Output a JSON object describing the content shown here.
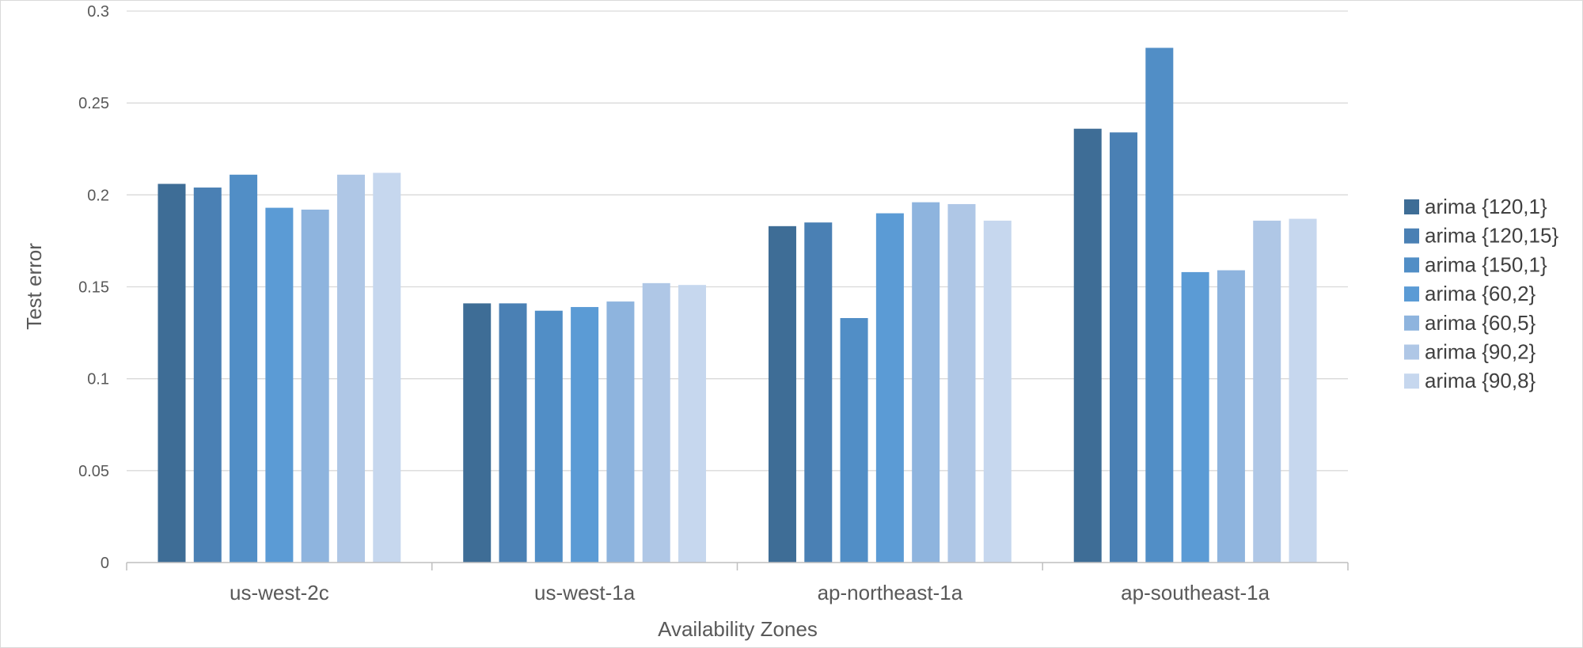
{
  "chart_data": {
    "type": "bar",
    "title": "",
    "xlabel": "Availability Zones",
    "ylabel": "Test error",
    "ylim": [
      0,
      0.3
    ],
    "yticks": [
      {
        "value": 0,
        "label": "0"
      },
      {
        "value": 0.05,
        "label": "0.05"
      },
      {
        "value": 0.1,
        "label": "0.1"
      },
      {
        "value": 0.15,
        "label": "0.15"
      },
      {
        "value": 0.2,
        "label": "0.2"
      },
      {
        "value": 0.25,
        "label": "0.25"
      },
      {
        "value": 0.3,
        "label": "0.3"
      }
    ],
    "grid": true,
    "legend_position": "right",
    "categories": [
      "us-west-2c",
      "us-west-1a",
      "ap-northeast-1a",
      "ap-southeast-1a"
    ],
    "series": [
      {
        "name": "arima {120,1}",
        "color": "#3e6d96",
        "values": [
          0.206,
          0.141,
          0.183,
          0.236
        ]
      },
      {
        "name": "arima {120,15}",
        "color": "#4a80b4",
        "values": [
          0.204,
          0.141,
          0.185,
          0.234
        ]
      },
      {
        "name": "arima {150,1}",
        "color": "#518ec6",
        "values": [
          0.211,
          0.137,
          0.133,
          0.28
        ]
      },
      {
        "name": "arima {60,2}",
        "color": "#5b9bd5",
        "values": [
          0.193,
          0.139,
          0.19,
          0.158
        ]
      },
      {
        "name": "arima {60,5}",
        "color": "#8eb4de",
        "values": [
          0.192,
          0.142,
          0.196,
          0.159
        ]
      },
      {
        "name": "arima {90,2}",
        "color": "#afc7e6",
        "values": [
          0.211,
          0.152,
          0.195,
          0.186
        ]
      },
      {
        "name": "arima {90,8}",
        "color": "#c6d7ee",
        "values": [
          0.212,
          0.151,
          0.186,
          0.187
        ]
      }
    ]
  }
}
